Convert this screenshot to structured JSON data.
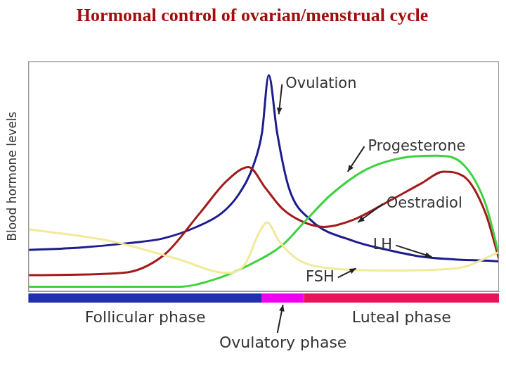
{
  "chart_data": {
    "type": "line",
    "title": "Hormonal control of ovarian/menstrual cycle",
    "ylabel": "Blood hormone levels",
    "xlim": [
      0,
      28
    ],
    "ylim": [
      0,
      100
    ],
    "tick_labels": false,
    "grid": false,
    "series": [
      {
        "name": "FSH",
        "color": "#f3e99a",
        "x": [
          0,
          4.8,
          8.9,
          11.8,
          12.9,
          13.7,
          14.2,
          14.9,
          16,
          18,
          21.4,
          25.5,
          28
        ],
        "values": [
          27,
          22,
          14,
          8,
          12,
          25,
          30,
          22,
          14,
          10,
          9,
          10,
          17
        ]
      },
      {
        "name": "Progesterone",
        "color": "#3fd23f",
        "x": [
          0,
          9,
          11,
          13,
          15.1,
          16.4,
          18,
          20.1,
          22.2,
          24.3,
          25.9,
          27.2,
          28
        ],
        "values": [
          2,
          2,
          5,
          11,
          20,
          30,
          42,
          53,
          58,
          59,
          55,
          38,
          16
        ]
      },
      {
        "name": "Oestradiol",
        "color": "#a31a1a",
        "x": [
          0,
          5.6,
          8.1,
          10.2,
          11.8,
          13.1,
          14.1,
          15.1,
          16.4,
          17.6,
          19.3,
          21.4,
          23.4,
          24.7,
          25.9,
          27.2,
          28
        ],
        "values": [
          7,
          8,
          16,
          34,
          48,
          54,
          45,
          36,
          30,
          28,
          31,
          39,
          47,
          52,
          50,
          34,
          14
        ]
      },
      {
        "name": "LH",
        "color": "#1c1c8f",
        "x": [
          0,
          3,
          6,
          8,
          10,
          11.5,
          12.5,
          13.4,
          13.9,
          14.3,
          14.8,
          15.5,
          16.8,
          19.3,
          21.4,
          23.5,
          28
        ],
        "values": [
          18,
          19,
          21,
          23,
          28,
          34,
          42,
          55,
          69,
          94,
          69,
          45,
          31,
          22,
          18,
          15,
          13
        ]
      }
    ],
    "phases": [
      {
        "name": "Follicular phase",
        "start": 0,
        "end": 13.9,
        "color": "#1f2fb0"
      },
      {
        "name": "Ovulatory phase",
        "start": 13.9,
        "end": 16.4,
        "color": "#f000f0"
      },
      {
        "name": "Luteal phase",
        "start": 16.4,
        "end": 28,
        "color": "#e8145a"
      }
    ],
    "annotations": [
      {
        "text": "Ovulation",
        "x": 15.3,
        "y": 90,
        "point": [
          14.9,
          77
        ]
      },
      {
        "text": "Progesterone",
        "x": 20.2,
        "y": 63,
        "point": [
          19.0,
          52
        ]
      },
      {
        "text": "Oestradiol",
        "x": 21.3,
        "y": 38,
        "point": [
          19.6,
          30
        ]
      },
      {
        "text": "LH",
        "x": 20.5,
        "y": 20,
        "point": [
          24.0,
          15
        ]
      },
      {
        "text": "FSH",
        "x": 16.5,
        "y": 6,
        "point": [
          19.5,
          10
        ]
      }
    ]
  }
}
